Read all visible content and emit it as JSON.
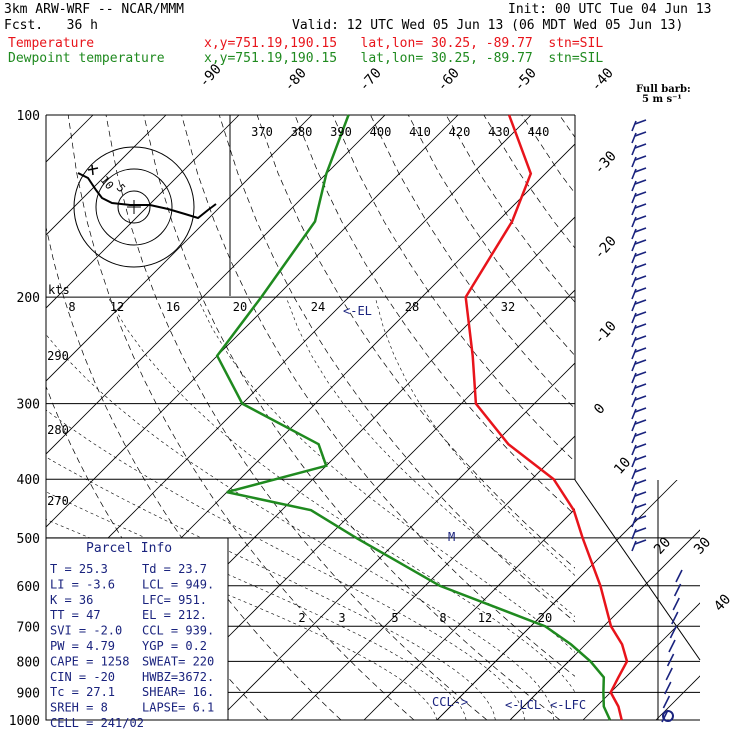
{
  "header": {
    "model": "3km ARW-WRF -- NCAR/MMM",
    "init": "Init: 00 UTC Tue 04 Jun 13",
    "fcst": "Fcst.   36 h",
    "valid": "Valid: 12 UTC Wed 05 Jun 13 (06 MDT Wed 05 Jun 13)",
    "temp_label": "Temperature",
    "temp_loc": "x,y=751.19,190.15   lat,lon= 30.25, -89.77  stn=SIL",
    "dew_label": "Dewpoint temperature",
    "dew_loc": "x,y=751.19,190.15   lat,lon= 30.25, -89.77  stn=SIL",
    "barb_title": "Full barb:",
    "barb_unit": "5 m s⁻¹"
  },
  "colors": {
    "temperature": "#e8141b",
    "dewpoint": "#1f8a1f",
    "text_blue": "#1a237e",
    "grid": "#000000"
  },
  "chart_data": {
    "type": "line",
    "title": "",
    "ylabel": "",
    "y_scale": "log-pressure",
    "y_ticks": [
      "100",
      "200",
      "300",
      "400",
      "500",
      "600",
      "700",
      "800",
      "900",
      "1000"
    ],
    "isotherm_labels": [
      "-90",
      "-80",
      "-70",
      "-60",
      "-50",
      "-40",
      "-30",
      "-20",
      "-10",
      "0",
      "10",
      "20",
      "30",
      "40"
    ],
    "theta_labels": [
      "370",
      "380",
      "390",
      "400",
      "410",
      "420",
      "430",
      "440"
    ],
    "mixing_ratio_labels": [
      "2",
      "3",
      "5",
      "8",
      "12",
      "20"
    ],
    "hodograph_speeds": [
      "8",
      "12",
      "16",
      "20",
      "24",
      "28",
      "32"
    ],
    "hodograph_unit": "kts",
    "wind_ring_labels": [
      "290",
      "280",
      "270"
    ],
    "ring_labels": [
      "10",
      "5"
    ],
    "annotations": [
      "<-EL",
      "CCL->",
      "<-LCL",
      "<-LFC",
      "M"
    ],
    "series": [
      {
        "name": "Temperature",
        "points": [
          [
            100,
            -73
          ],
          [
            125,
            -62
          ],
          [
            150,
            -58
          ],
          [
            200,
            -54
          ],
          [
            250,
            -45
          ],
          [
            300,
            -38
          ],
          [
            350,
            -28
          ],
          [
            400,
            -17
          ],
          [
            450,
            -10
          ],
          [
            500,
            -5
          ],
          [
            600,
            4
          ],
          [
            700,
            11
          ],
          [
            750,
            15
          ],
          [
            800,
            18
          ],
          [
            850,
            19
          ],
          [
            900,
            20
          ],
          [
            950,
            23
          ],
          [
            1000,
            25.3
          ]
        ]
      },
      {
        "name": "Dewpoint temperature",
        "points": [
          [
            100,
            -95
          ],
          [
            125,
            -90
          ],
          [
            150,
            -85
          ],
          [
            200,
            -82
          ],
          [
            250,
            -80
          ],
          [
            300,
            -70
          ],
          [
            350,
            -54
          ],
          [
            380,
            -50
          ],
          [
            420,
            -60
          ],
          [
            450,
            -46
          ],
          [
            500,
            -36
          ],
          [
            600,
            -18
          ],
          [
            700,
            2
          ],
          [
            750,
            8
          ],
          [
            800,
            13
          ],
          [
            850,
            17
          ],
          [
            900,
            19
          ],
          [
            950,
            21
          ],
          [
            1000,
            23.7
          ]
        ]
      }
    ]
  },
  "parcel": {
    "title": "Parcel Info",
    "rows": [
      [
        "T  =   25.3",
        "Td =  23.7"
      ],
      [
        "LI =   -3.6",
        "LCL =  949."
      ],
      [
        "K  =     36",
        "LFC=  951."
      ],
      [
        "TT =     47",
        "EL  =  212."
      ],
      [
        "SVI =  -2.0",
        "CCL =  939."
      ],
      [
        "PW =   4.79",
        "YGP =   0.2"
      ],
      [
        "CAPE = 1258",
        "SWEAT=  220"
      ],
      [
        "CIN =   -20",
        "HWBZ=3672."
      ],
      [
        "Tc =   27.1",
        "SHEAR=  16."
      ],
      [
        "SREH =    8",
        "LAPSE=  6.1"
      ],
      [
        "CELL = 241/02",
        ""
      ]
    ]
  }
}
